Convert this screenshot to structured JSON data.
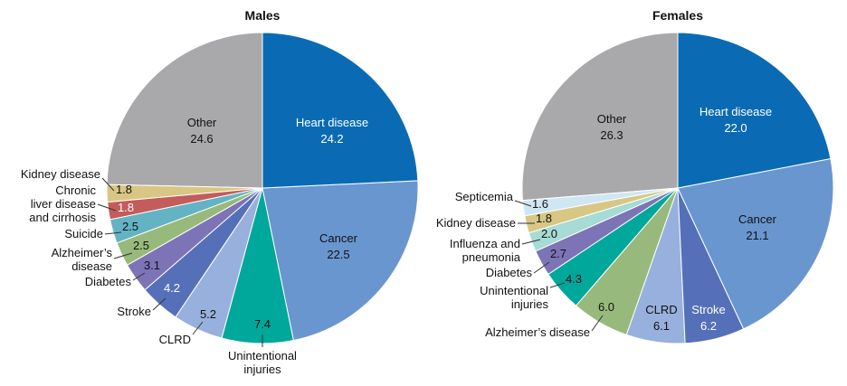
{
  "chart_data": [
    {
      "type": "pie",
      "title": "Males",
      "slices": [
        {
          "label": "Heart disease",
          "value": 24.2,
          "color": "#0a6bb4",
          "text_color": "#ffffff"
        },
        {
          "label": "Cancer",
          "value": 22.5,
          "color": "#6a96d0",
          "text_color": "#111111"
        },
        {
          "label": "Unintentional injuries",
          "value": 7.4,
          "color": "#00a79b",
          "text_color": "#111111"
        },
        {
          "label": "CLRD",
          "value": 5.2,
          "color": "#98b0de",
          "text_color": "#111111"
        },
        {
          "label": "Stroke",
          "value": 4.2,
          "color": "#5570b8",
          "text_color": "#ffffff"
        },
        {
          "label": "Diabetes",
          "value": 3.1,
          "color": "#7c74b6",
          "text_color": "#111111"
        },
        {
          "label": "Alzheimer’s disease",
          "value": 2.5,
          "color": "#97ba7c",
          "text_color": "#111111"
        },
        {
          "label": "Suicide",
          "value": 2.5,
          "color": "#63b3c3",
          "text_color": "#111111"
        },
        {
          "label": "Chronic liver disease and cirrhosis",
          "value": 1.8,
          "color": "#c45c5c",
          "text_color": "#ffffff"
        },
        {
          "label": "Kidney disease",
          "value": 1.8,
          "color": "#d8c784",
          "text_color": "#111111"
        },
        {
          "label": "Other",
          "value": 24.6,
          "color": "#a9a9ab",
          "text_color": "#111111"
        }
      ]
    },
    {
      "type": "pie",
      "title": "Females",
      "slices": [
        {
          "label": "Heart disease",
          "value": 22.0,
          "color": "#0a6bb4",
          "text_color": "#ffffff"
        },
        {
          "label": "Cancer",
          "value": 21.1,
          "color": "#6a96d0",
          "text_color": "#111111"
        },
        {
          "label": "Stroke",
          "value": 6.2,
          "color": "#5570b8",
          "text_color": "#ffffff"
        },
        {
          "label": "CLRD",
          "value": 6.1,
          "color": "#98b0de",
          "text_color": "#111111"
        },
        {
          "label": "Alzheimer’s disease",
          "value": 6.0,
          "color": "#97ba7c",
          "text_color": "#111111"
        },
        {
          "label": "Unintentional injuries",
          "value": 4.3,
          "color": "#00a79b",
          "text_color": "#111111"
        },
        {
          "label": "Diabetes",
          "value": 2.7,
          "color": "#7c74b6",
          "text_color": "#111111"
        },
        {
          "label": "Influenza and pneumonia",
          "value": 2.0,
          "color": "#a6dbd6",
          "text_color": "#111111"
        },
        {
          "label": "Kidney disease",
          "value": 1.8,
          "color": "#d8c784",
          "text_color": "#111111"
        },
        {
          "label": "Septicemia",
          "value": 1.6,
          "color": "#cfe7f3",
          "text_color": "#111111"
        },
        {
          "label": "Other",
          "value": 26.3,
          "color": "#a9a9ab",
          "text_color": "#111111"
        }
      ]
    }
  ]
}
